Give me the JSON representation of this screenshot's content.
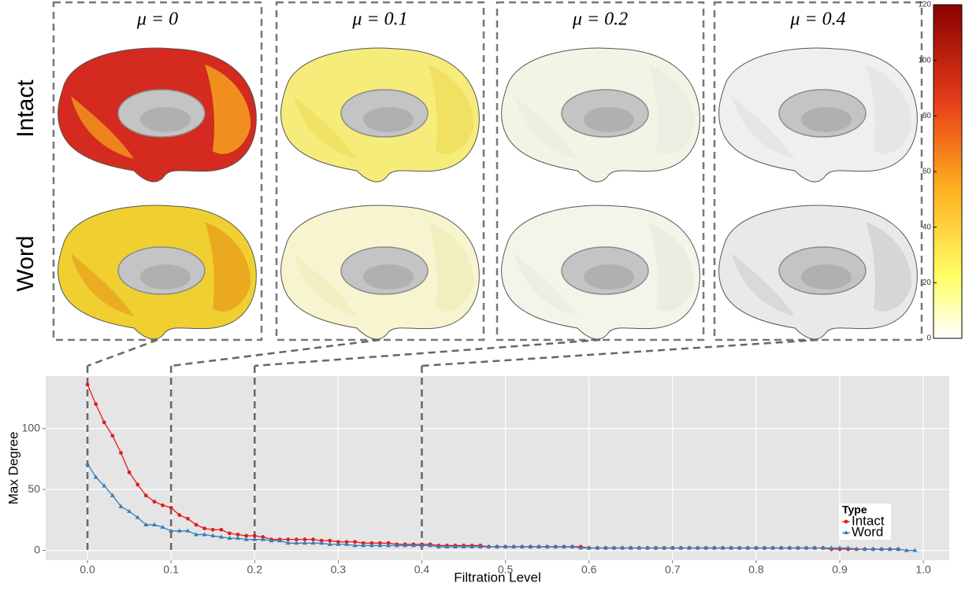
{
  "brain_grid": {
    "columns": [
      "μ = 0",
      "μ = 0.1",
      "μ = 0.2",
      "μ = 0.4"
    ],
    "rows": [
      "Intact",
      "Word"
    ],
    "colorbar_lim": [
      0,
      120
    ],
    "colorbar_ticks": [
      0,
      20,
      40,
      60,
      80,
      100,
      120
    ]
  },
  "chart_data": {
    "type": "line",
    "x_label": "Filtration Level",
    "y_label": "Max Degree",
    "legend_title": "Type",
    "legend_position": "bottom-right",
    "grid": true,
    "x": [
      0,
      0.01,
      0.02,
      0.03,
      0.04,
      0.05,
      0.06,
      0.07,
      0.08,
      0.09,
      0.1,
      0.11,
      0.12,
      0.13,
      0.14,
      0.15,
      0.16,
      0.17,
      0.18,
      0.19,
      0.2,
      0.21,
      0.22,
      0.23,
      0.24,
      0.25,
      0.26,
      0.27,
      0.28,
      0.29,
      0.3,
      0.31,
      0.32,
      0.33,
      0.34,
      0.35,
      0.36,
      0.37,
      0.38,
      0.39,
      0.4,
      0.41,
      0.42,
      0.43,
      0.44,
      0.45,
      0.46,
      0.47,
      0.48,
      0.49,
      0.5,
      0.51,
      0.52,
      0.53,
      0.54,
      0.55,
      0.56,
      0.57,
      0.58,
      0.59,
      0.6,
      0.61,
      0.62,
      0.63,
      0.64,
      0.65,
      0.66,
      0.67,
      0.68,
      0.69,
      0.7,
      0.71,
      0.72,
      0.73,
      0.74,
      0.75,
      0.76,
      0.77,
      0.78,
      0.79,
      0.8,
      0.81,
      0.82,
      0.83,
      0.84,
      0.85,
      0.86,
      0.87,
      0.88,
      0.89,
      0.9,
      0.91,
      0.92,
      0.93,
      0.94,
      0.95,
      0.96,
      0.97,
      0.98,
      0.99
    ],
    "series": [
      {
        "name": "Intact",
        "color": "#e41a1c",
        "marker": "circle",
        "values": [
          136,
          120,
          105,
          94,
          80,
          64,
          54,
          45,
          40,
          37,
          35,
          29,
          26,
          21,
          18,
          17,
          17,
          14,
          13,
          12,
          12,
          11,
          9,
          9,
          9,
          9,
          9,
          9,
          8,
          8,
          7,
          7,
          7,
          6,
          6,
          6,
          6,
          5,
          5,
          5,
          5,
          5,
          4,
          4,
          4,
          4,
          4,
          4,
          3,
          3,
          3,
          3,
          3,
          3,
          3,
          3,
          3,
          3,
          3,
          3,
          2,
          2,
          2,
          2,
          2,
          2,
          2,
          2,
          2,
          2,
          2,
          2,
          2,
          2,
          2,
          2,
          2,
          2,
          2,
          2,
          2,
          2,
          2,
          2,
          2,
          2,
          2,
          2,
          2,
          1,
          1,
          1,
          1,
          1,
          1,
          1,
          1,
          1,
          null,
          null
        ]
      },
      {
        "name": "Word",
        "color": "#377eb8",
        "marker": "triangle",
        "values": [
          71,
          60,
          53,
          45,
          36,
          32,
          27,
          21,
          21,
          19,
          16,
          16,
          16,
          13,
          13,
          12,
          11,
          10,
          10,
          9,
          9,
          9,
          8,
          8,
          6,
          6,
          6,
          6,
          6,
          5,
          5,
          5,
          4,
          4,
          4,
          4,
          4,
          4,
          4,
          4,
          4,
          4,
          3,
          3,
          3,
          3,
          3,
          3,
          3,
          3,
          3,
          3,
          3,
          3,
          3,
          3,
          3,
          3,
          3,
          2,
          2,
          2,
          2,
          2,
          2,
          2,
          2,
          2,
          2,
          2,
          2,
          2,
          2,
          2,
          2,
          2,
          2,
          2,
          2,
          2,
          2,
          2,
          2,
          2,
          2,
          2,
          2,
          2,
          2,
          2,
          2,
          2,
          1,
          1,
          1,
          1,
          1,
          1,
          0,
          0
        ]
      }
    ],
    "highlight_x": [
      0,
      0.1,
      0.2,
      0.4
    ],
    "xlim": [
      -0.05,
      1.031
    ],
    "ylim": [
      -8,
      143
    ],
    "xticks": [
      {
        "value": 0,
        "label": "0.0"
      },
      {
        "value": 0.1,
        "label": "0.1"
      },
      {
        "value": 0.2,
        "label": "0.2"
      },
      {
        "value": 0.3,
        "label": "0.3"
      },
      {
        "value": 0.4,
        "label": "0.4"
      },
      {
        "value": 0.5,
        "label": "0.5"
      },
      {
        "value": 0.6,
        "label": "0.6"
      },
      {
        "value": 0.7,
        "label": "0.7"
      },
      {
        "value": 0.8,
        "label": "0.8"
      },
      {
        "value": 0.9,
        "label": "0.9"
      },
      {
        "value": 1,
        "label": "1.0"
      }
    ],
    "yticks": [
      0,
      50,
      100
    ]
  }
}
